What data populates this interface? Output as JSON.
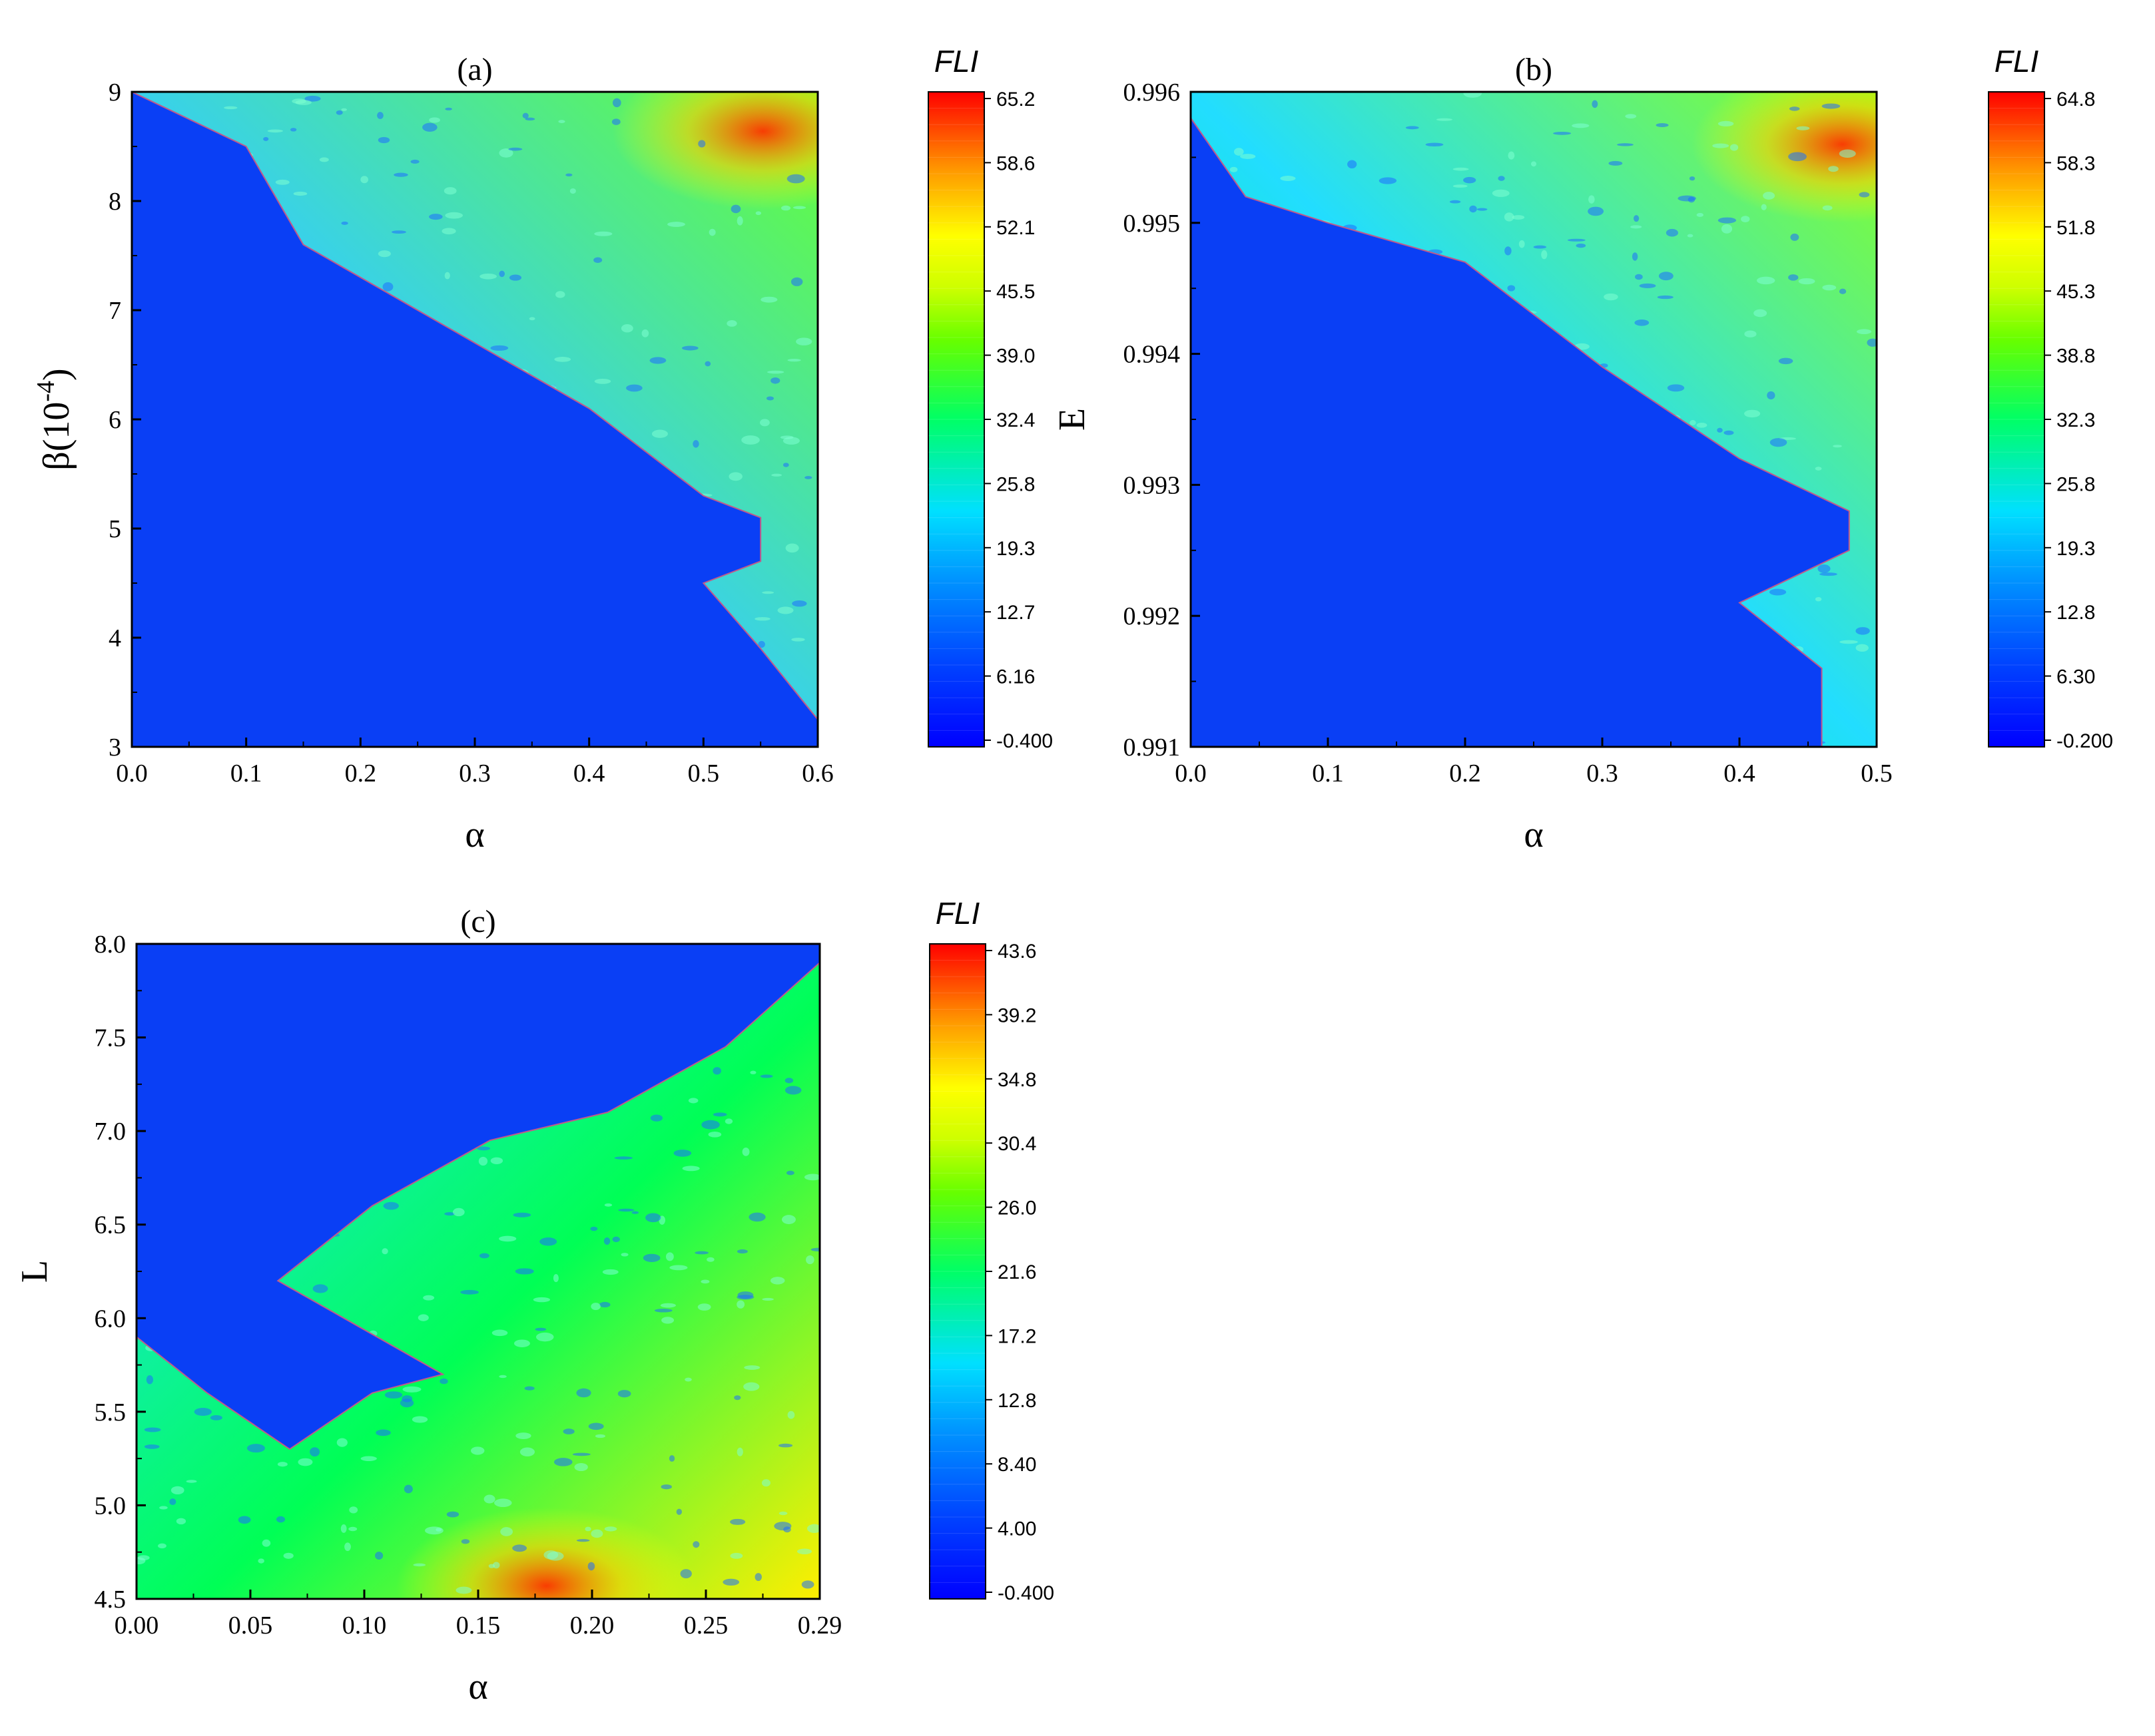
{
  "chart_data": [
    {
      "type": "heatmap",
      "title": "(a)",
      "xlabel": "α",
      "ylabel_main": "β(10",
      "ylabel_sup": "-4",
      "ylabel_close": ")",
      "xlim": [
        0.0,
        0.6
      ],
      "ylim": [
        3,
        9
      ],
      "x_ticks": [
        "0.0",
        "0.1",
        "0.2",
        "0.3",
        "0.4",
        "0.5",
        "0.6"
      ],
      "y_ticks": [
        "3",
        "4",
        "5",
        "6",
        "7",
        "8",
        "9"
      ],
      "colorbar": {
        "label": "FLI",
        "min": -0.4,
        "max": 65.2,
        "ticks": [
          "-0.400",
          "6.16",
          "12.7",
          "19.3",
          "25.8",
          "32.4",
          "39.0",
          "45.5",
          "52.1",
          "58.6",
          "65.2"
        ]
      },
      "regular_region_boundary": [
        [
          0.0,
          9.0
        ],
        [
          0.1,
          8.5
        ],
        [
          0.15,
          7.6
        ],
        [
          0.2,
          7.3
        ],
        [
          0.3,
          6.7
        ],
        [
          0.4,
          6.1
        ],
        [
          0.45,
          5.7
        ],
        [
          0.5,
          5.3
        ],
        [
          0.55,
          5.1
        ],
        [
          0.55,
          4.7
        ],
        [
          0.5,
          4.5
        ],
        [
          0.55,
          3.9
        ],
        [
          0.6,
          3.25
        ]
      ],
      "gradient_direction": "increasing toward top-right"
    },
    {
      "type": "heatmap",
      "title": "(b)",
      "xlabel": "α",
      "ylabel": "E",
      "xlim": [
        0.0,
        0.5
      ],
      "ylim": [
        0.991,
        0.996
      ],
      "x_ticks": [
        "0.0",
        "0.1",
        "0.2",
        "0.3",
        "0.4",
        "0.5"
      ],
      "y_ticks": [
        "0.991",
        "0.992",
        "0.993",
        "0.994",
        "0.995",
        "0.996"
      ],
      "colorbar": {
        "label": "FLI",
        "min": -0.2,
        "max": 64.8,
        "ticks": [
          "-0.200",
          "6.30",
          "12.8",
          "19.3",
          "25.8",
          "32.3",
          "38.8",
          "45.3",
          "51.8",
          "58.3",
          "64.8"
        ]
      },
      "regular_region_boundary": [
        [
          0.0,
          0.9958
        ],
        [
          0.04,
          0.9952
        ],
        [
          0.1,
          0.995
        ],
        [
          0.2,
          0.9947
        ],
        [
          0.3,
          0.9939
        ],
        [
          0.4,
          0.9932
        ],
        [
          0.48,
          0.9928
        ],
        [
          0.48,
          0.9925
        ],
        [
          0.4,
          0.9921
        ],
        [
          0.46,
          0.9916
        ],
        [
          0.46,
          0.991
        ]
      ],
      "gradient_direction": "increasing toward top-right"
    },
    {
      "type": "heatmap",
      "title": "(c)",
      "xlabel": "α",
      "ylabel": "L",
      "xlim": [
        0.0,
        0.29
      ],
      "ylim": [
        4.5,
        8.0
      ],
      "x_ticks": [
        "0.00",
        "0.05",
        "0.10",
        "0.15",
        "0.20",
        "0.25",
        "0.29"
      ],
      "y_ticks": [
        "4.5",
        "5.0",
        "5.5",
        "6.0",
        "6.5",
        "7.0",
        "7.5",
        "8.0"
      ],
      "colorbar": {
        "label": "FLI",
        "min": -0.4,
        "max": 43.6,
        "ticks": [
          "-0.400",
          "4.00",
          "8.40",
          "12.8",
          "17.2",
          "21.6",
          "26.0",
          "30.4",
          "34.8",
          "39.2",
          "43.6"
        ]
      },
      "regular_region_boundary": [
        [
          0.0,
          5.9
        ],
        [
          0.03,
          5.6
        ],
        [
          0.065,
          5.3
        ],
        [
          0.1,
          5.6
        ],
        [
          0.13,
          5.7
        ],
        [
          0.06,
          6.2
        ],
        [
          0.1,
          6.6
        ],
        [
          0.15,
          6.95
        ],
        [
          0.2,
          7.1
        ],
        [
          0.25,
          7.45
        ],
        [
          0.29,
          7.9
        ]
      ],
      "gradient_direction": "increasing toward bottom-right"
    }
  ]
}
